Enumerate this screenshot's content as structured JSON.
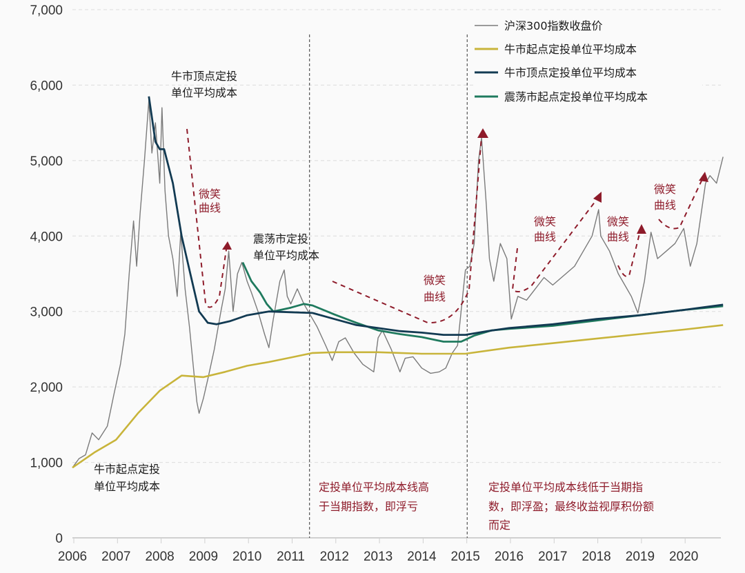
{
  "chart_data": {
    "type": "line",
    "title": "",
    "xlabel": "",
    "ylabel": "",
    "xlim": [
      2006,
      2020.9
    ],
    "ylim": [
      0,
      7000
    ],
    "x_ticks": [
      "2006",
      "2007",
      "2008",
      "2009",
      "2010",
      "2011",
      "2012",
      "2013",
      "2014",
      "2015",
      "2016",
      "2017",
      "2018",
      "2019",
      "2020"
    ],
    "y_ticks": [
      "0",
      "1,000",
      "2,000",
      "3,000",
      "4,000",
      "5,000",
      "6,000",
      "7,000"
    ],
    "grid": "horizontal dashed",
    "legend_position": "top-right",
    "colors": {
      "index": "#7a7a7a",
      "bull_start": "#c8b43a",
      "bull_top": "#123a52",
      "range": "#1f7a5e",
      "annotation": "#8e1b2a"
    },
    "dividers": [
      2011.43,
      2015.04
    ],
    "series": [
      {
        "name": "沪深300指数收盘价",
        "key": "index",
        "points": [
          [
            2006.0,
            930
          ],
          [
            2006.15,
            1050
          ],
          [
            2006.3,
            1100
          ],
          [
            2006.45,
            1390
          ],
          [
            2006.6,
            1300
          ],
          [
            2006.8,
            1480
          ],
          [
            2006.95,
            1900
          ],
          [
            2007.1,
            2300
          ],
          [
            2007.2,
            2700
          ],
          [
            2007.3,
            3500
          ],
          [
            2007.4,
            4200
          ],
          [
            2007.47,
            3600
          ],
          [
            2007.55,
            4300
          ],
          [
            2007.65,
            5000
          ],
          [
            2007.75,
            5800
          ],
          [
            2007.82,
            5100
          ],
          [
            2007.9,
            5500
          ],
          [
            2008.0,
            4700
          ],
          [
            2008.05,
            5700
          ],
          [
            2008.12,
            4600
          ],
          [
            2008.2,
            4000
          ],
          [
            2008.3,
            3700
          ],
          [
            2008.4,
            3200
          ],
          [
            2008.48,
            4050
          ],
          [
            2008.58,
            3300
          ],
          [
            2008.68,
            2800
          ],
          [
            2008.78,
            2200
          ],
          [
            2008.85,
            1800
          ],
          [
            2008.9,
            1650
          ],
          [
            2009.0,
            1850
          ],
          [
            2009.1,
            2100
          ],
          [
            2009.25,
            2500
          ],
          [
            2009.4,
            3000
          ],
          [
            2009.5,
            3300
          ],
          [
            2009.58,
            3800
          ],
          [
            2009.68,
            3000
          ],
          [
            2009.78,
            3500
          ],
          [
            2009.88,
            3650
          ],
          [
            2010.0,
            3400
          ],
          [
            2010.1,
            3250
          ],
          [
            2010.25,
            3000
          ],
          [
            2010.4,
            2700
          ],
          [
            2010.5,
            2520
          ],
          [
            2010.6,
            2900
          ],
          [
            2010.75,
            3400
          ],
          [
            2010.85,
            3550
          ],
          [
            2010.92,
            3200
          ],
          [
            2011.0,
            3100
          ],
          [
            2011.15,
            3300
          ],
          [
            2011.3,
            3100
          ],
          [
            2011.45,
            2950
          ],
          [
            2011.6,
            2800
          ],
          [
            2011.8,
            2550
          ],
          [
            2011.95,
            2350
          ],
          [
            2012.1,
            2600
          ],
          [
            2012.25,
            2650
          ],
          [
            2012.45,
            2450
          ],
          [
            2012.65,
            2300
          ],
          [
            2012.9,
            2200
          ],
          [
            2013.0,
            2650
          ],
          [
            2013.1,
            2750
          ],
          [
            2013.3,
            2500
          ],
          [
            2013.5,
            2200
          ],
          [
            2013.62,
            2380
          ],
          [
            2013.8,
            2400
          ],
          [
            2014.0,
            2250
          ],
          [
            2014.2,
            2180
          ],
          [
            2014.4,
            2200
          ],
          [
            2014.55,
            2250
          ],
          [
            2014.7,
            2450
          ],
          [
            2014.82,
            2550
          ],
          [
            2014.9,
            3000
          ],
          [
            2015.0,
            3550
          ],
          [
            2015.1,
            3600
          ],
          [
            2015.2,
            3900
          ],
          [
            2015.3,
            5000
          ],
          [
            2015.37,
            5300
          ],
          [
            2015.48,
            4400
          ],
          [
            2015.55,
            3700
          ],
          [
            2015.65,
            3400
          ],
          [
            2015.8,
            3900
          ],
          [
            2015.95,
            3700
          ],
          [
            2016.0,
            3300
          ],
          [
            2016.05,
            2900
          ],
          [
            2016.2,
            3200
          ],
          [
            2016.4,
            3150
          ],
          [
            2016.6,
            3300
          ],
          [
            2016.8,
            3450
          ],
          [
            2017.0,
            3350
          ],
          [
            2017.3,
            3500
          ],
          [
            2017.5,
            3600
          ],
          [
            2017.7,
            3800
          ],
          [
            2017.9,
            4000
          ],
          [
            2018.05,
            4350
          ],
          [
            2018.1,
            4000
          ],
          [
            2018.3,
            3800
          ],
          [
            2018.5,
            3500
          ],
          [
            2018.6,
            3400
          ],
          [
            2018.8,
            3200
          ],
          [
            2018.95,
            2980
          ],
          [
            2019.1,
            3400
          ],
          [
            2019.25,
            4050
          ],
          [
            2019.4,
            3700
          ],
          [
            2019.6,
            3800
          ],
          [
            2019.8,
            3900
          ],
          [
            2020.0,
            4100
          ],
          [
            2020.15,
            3600
          ],
          [
            2020.3,
            3900
          ],
          [
            2020.5,
            4700
          ],
          [
            2020.6,
            4800
          ],
          [
            2020.75,
            4700
          ],
          [
            2020.9,
            5050
          ]
        ]
      },
      {
        "name": "牛市起点定投单位平均成本",
        "key": "bull_start",
        "points": [
          [
            2006.0,
            930
          ],
          [
            2006.5,
            1130
          ],
          [
            2007.0,
            1300
          ],
          [
            2007.5,
            1650
          ],
          [
            2008.0,
            1950
          ],
          [
            2008.5,
            2150
          ],
          [
            2009.0,
            2130
          ],
          [
            2009.5,
            2200
          ],
          [
            2010.0,
            2280
          ],
          [
            2010.5,
            2330
          ],
          [
            2011.0,
            2390
          ],
          [
            2011.5,
            2450
          ],
          [
            2012.0,
            2460
          ],
          [
            2013.0,
            2460
          ],
          [
            2014.0,
            2440
          ],
          [
            2015.0,
            2440
          ],
          [
            2016.0,
            2520
          ],
          [
            2017.0,
            2580
          ],
          [
            2018.0,
            2640
          ],
          [
            2019.0,
            2700
          ],
          [
            2020.0,
            2760
          ],
          [
            2020.9,
            2820
          ]
        ]
      },
      {
        "name": "牛市顶点定投单位平均成本",
        "key": "bull_top",
        "points": [
          [
            2007.75,
            5850
          ],
          [
            2007.9,
            5250
          ],
          [
            2008.0,
            5150
          ],
          [
            2008.1,
            5150
          ],
          [
            2008.3,
            4700
          ],
          [
            2008.5,
            4000
          ],
          [
            2008.7,
            3500
          ],
          [
            2008.9,
            3000
          ],
          [
            2009.1,
            2850
          ],
          [
            2009.3,
            2830
          ],
          [
            2009.6,
            2870
          ],
          [
            2010.0,
            2950
          ],
          [
            2010.5,
            3000
          ],
          [
            2011.0,
            2990
          ],
          [
            2011.5,
            2980
          ],
          [
            2012.0,
            2900
          ],
          [
            2012.5,
            2820
          ],
          [
            2013.0,
            2780
          ],
          [
            2013.5,
            2740
          ],
          [
            2014.0,
            2720
          ],
          [
            2014.5,
            2690
          ],
          [
            2015.0,
            2690
          ],
          [
            2015.5,
            2740
          ],
          [
            2016.0,
            2780
          ],
          [
            2017.0,
            2830
          ],
          [
            2018.0,
            2900
          ],
          [
            2019.0,
            2950
          ],
          [
            2020.0,
            3020
          ],
          [
            2020.9,
            3090
          ]
        ]
      },
      {
        "name": "震荡市起点定投单位平均成本",
        "key": "range",
        "points": [
          [
            2009.9,
            3650
          ],
          [
            2010.1,
            3400
          ],
          [
            2010.3,
            3250
          ],
          [
            2010.45,
            3100
          ],
          [
            2010.6,
            3000
          ],
          [
            2011.0,
            3050
          ],
          [
            2011.3,
            3100
          ],
          [
            2011.5,
            3080
          ],
          [
            2012.0,
            2960
          ],
          [
            2012.5,
            2850
          ],
          [
            2013.0,
            2750
          ],
          [
            2013.5,
            2700
          ],
          [
            2014.0,
            2660
          ],
          [
            2014.5,
            2600
          ],
          [
            2014.9,
            2600
          ],
          [
            2015.2,
            2680
          ],
          [
            2015.6,
            2750
          ],
          [
            2016.0,
            2770
          ],
          [
            2017.0,
            2810
          ],
          [
            2018.0,
            2880
          ],
          [
            2019.0,
            2950
          ],
          [
            2020.0,
            3020
          ],
          [
            2020.9,
            3070
          ]
        ]
      }
    ],
    "annotations": {
      "bull_top_label": [
        "牛市顶点定投",
        "单位平均成本"
      ],
      "range_label": [
        "震荡市定投",
        "单位平均成本"
      ],
      "bull_start_label": [
        "牛市起点定投",
        "单位平均成本"
      ],
      "loss_note": [
        "定投单位平均成本线高",
        "于当期指数，即浮亏"
      ],
      "gain_note": [
        "定投单位平均成本线低于当期指",
        "数，即浮盈；最终收益视厚积份额",
        "而定"
      ],
      "smile": [
        "微笑",
        "曲线"
      ]
    }
  }
}
